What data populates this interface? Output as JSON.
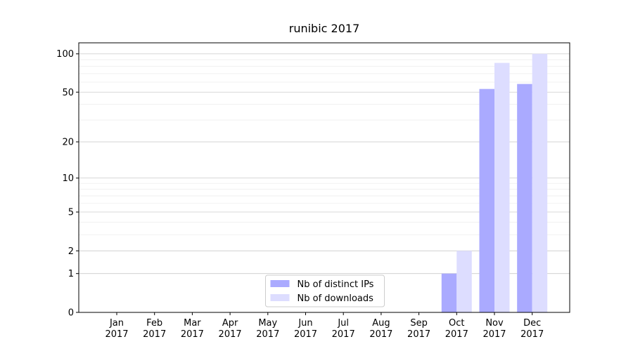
{
  "chart_data": {
    "type": "bar",
    "title": "runibic 2017",
    "categories": [
      "Jan\n2017",
      "Feb\n2017",
      "Mar\n2017",
      "Apr\n2017",
      "May\n2017",
      "Jun\n2017",
      "Jul\n2017",
      "Aug\n2017",
      "Sep\n2017",
      "Oct\n2017",
      "Nov\n2017",
      "Dec\n2017"
    ],
    "series": [
      {
        "name": "Nb of distinct IPs",
        "color": "#aaaaff",
        "values": [
          0,
          0,
          0,
          0,
          0,
          0,
          0,
          0,
          0,
          1,
          53,
          58
        ]
      },
      {
        "name": "Nb of downloads",
        "color": "#ddddff",
        "values": [
          0,
          0,
          0,
          0,
          0,
          0,
          0,
          0,
          0,
          2,
          85,
          100
        ]
      }
    ],
    "yscale": "log1p",
    "ylim": [
      0,
      122
    ],
    "yticks": [
      0,
      1,
      2,
      5,
      10,
      20,
      50,
      100
    ],
    "yticks_minor": [
      3,
      4,
      6,
      7,
      8,
      9,
      30,
      40,
      60,
      70,
      80,
      90
    ],
    "grid": true,
    "legend": "lower center"
  }
}
